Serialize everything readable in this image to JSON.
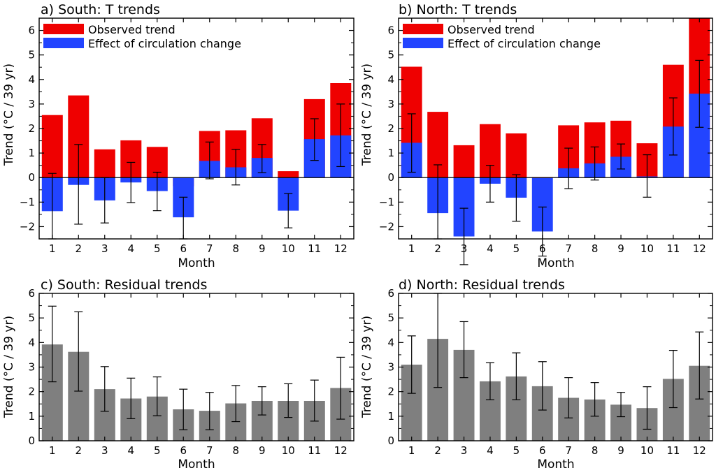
{
  "colors": {
    "observed": "#ef0000",
    "circulation": "#2244ff",
    "residual": "#7f7f7f",
    "axis": "#000000"
  },
  "chart_data": [
    {
      "type": "bar",
      "title": "a) South: T trends",
      "xlabel": "Month",
      "ylabel": "Trend (°C / 39 yr)",
      "categories": [
        "1",
        "2",
        "3",
        "4",
        "5",
        "6",
        "7",
        "8",
        "9",
        "10",
        "11",
        "12"
      ],
      "ylim": [
        -2.5,
        6.5
      ],
      "yticks": [
        -2,
        -1,
        0,
        1,
        2,
        3,
        4,
        5,
        6
      ],
      "legend": "top-left",
      "series": [
        {
          "name": "Observed trend",
          "color_key": "observed",
          "values": [
            2.55,
            3.35,
            1.15,
            1.52,
            1.25,
            -0.35,
            1.9,
            1.93,
            2.42,
            0.26,
            3.2,
            3.85
          ]
        },
        {
          "name": "Effect of circulation change",
          "color_key": "circulation",
          "values": [
            -1.37,
            -0.3,
            -0.93,
            -0.2,
            -0.55,
            -1.62,
            0.68,
            0.42,
            0.8,
            -1.35,
            1.57,
            1.72
          ],
          "error_low": [
            -2.5,
            -1.9,
            -1.85,
            -1.02,
            -1.35,
            -2.5,
            -0.05,
            -0.3,
            0.2,
            -2.05,
            0.7,
            0.45
          ],
          "error_high": [
            0.17,
            1.35,
            0.0,
            0.62,
            0.22,
            -0.8,
            1.45,
            1.15,
            1.35,
            -0.65,
            2.4,
            3.0
          ]
        }
      ]
    },
    {
      "type": "bar",
      "title": "b) North: T trends",
      "xlabel": "Month",
      "ylabel": "Trend (°C / 39 yr)",
      "categories": [
        "1",
        "2",
        "3",
        "4",
        "5",
        "6",
        "7",
        "8",
        "9",
        "10",
        "11",
        "12"
      ],
      "ylim": [
        -2.5,
        6.5
      ],
      "yticks": [
        -2,
        -1,
        0,
        1,
        2,
        3,
        4,
        5,
        6
      ],
      "legend": "top-left",
      "series": [
        {
          "name": "Observed trend",
          "color_key": "observed",
          "values": [
            4.52,
            2.68,
            1.32,
            2.18,
            1.8,
            0.02,
            2.13,
            2.25,
            2.32,
            1.4,
            4.6,
            6.5
          ]
        },
        {
          "name": "Effect of circulation change",
          "color_key": "circulation",
          "values": [
            1.42,
            -1.45,
            -2.4,
            -0.25,
            -0.82,
            -2.2,
            0.38,
            0.58,
            0.85,
            0.05,
            2.08,
            3.42
          ],
          "error_low": [
            0.22,
            -2.5,
            -3.55,
            -1.0,
            -1.78,
            -3.2,
            -0.45,
            -0.1,
            0.35,
            -0.8,
            0.92,
            2.05
          ],
          "error_high": [
            2.6,
            0.52,
            -1.25,
            0.5,
            0.12,
            -1.2,
            1.2,
            1.25,
            1.37,
            0.93,
            3.25,
            4.78
          ]
        }
      ]
    },
    {
      "type": "bar",
      "title": "c) South: Residual trends",
      "xlabel": "Month",
      "ylabel": "Trend (°C / 39 yr)",
      "categories": [
        "1",
        "2",
        "3",
        "4",
        "5",
        "6",
        "7",
        "8",
        "9",
        "10",
        "11",
        "12"
      ],
      "ylim": [
        0,
        6
      ],
      "yticks": [
        0,
        1,
        2,
        3,
        4,
        5,
        6
      ],
      "series": [
        {
          "color_key": "residual",
          "values": [
            3.92,
            3.62,
            2.1,
            1.72,
            1.8,
            1.28,
            1.22,
            1.52,
            1.62,
            1.62,
            1.62,
            2.15
          ],
          "error_low": [
            2.4,
            2.02,
            1.2,
            0.9,
            1.02,
            0.45,
            0.45,
            0.78,
            1.05,
            0.95,
            0.8,
            0.88
          ],
          "error_high": [
            5.48,
            5.25,
            3.02,
            2.55,
            2.6,
            2.1,
            1.97,
            2.25,
            2.2,
            2.32,
            2.47,
            3.4
          ]
        }
      ]
    },
    {
      "type": "bar",
      "title": "d) North: Residual trends",
      "xlabel": "Month",
      "ylabel": "Trend (°C / 39 yr)",
      "categories": [
        "1",
        "2",
        "3",
        "4",
        "5",
        "6",
        "7",
        "8",
        "9",
        "10",
        "11",
        "12"
      ],
      "ylim": [
        0,
        6
      ],
      "yticks": [
        0,
        1,
        2,
        3,
        4,
        5,
        6
      ],
      "series": [
        {
          "color_key": "residual",
          "values": [
            3.1,
            4.15,
            3.7,
            2.42,
            2.62,
            2.22,
            1.75,
            1.68,
            1.47,
            1.33,
            2.52,
            3.05
          ],
          "error_low": [
            1.93,
            2.17,
            2.57,
            1.67,
            1.67,
            1.25,
            0.93,
            1.0,
            0.98,
            0.47,
            1.35,
            1.7
          ],
          "error_high": [
            4.27,
            6.0,
            4.85,
            3.18,
            3.58,
            3.22,
            2.57,
            2.37,
            1.97,
            2.2,
            3.68,
            4.43
          ]
        }
      ]
    }
  ]
}
